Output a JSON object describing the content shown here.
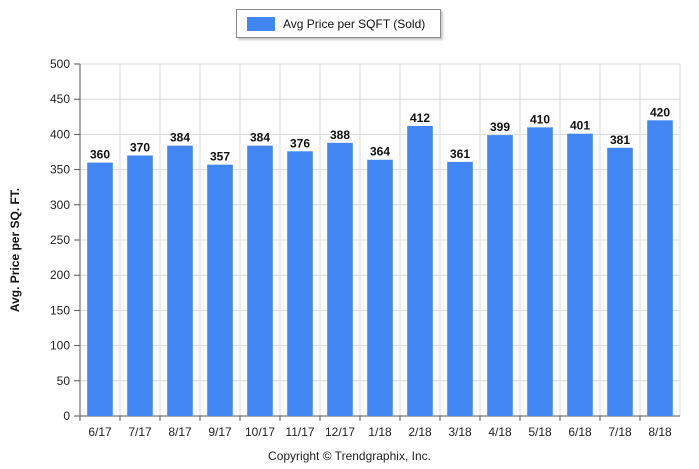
{
  "chart_data": {
    "type": "bar",
    "categories": [
      "6/17",
      "7/17",
      "8/17",
      "9/17",
      "10/17",
      "11/17",
      "12/17",
      "1/18",
      "2/18",
      "3/18",
      "4/18",
      "5/18",
      "6/18",
      "7/18",
      "8/18"
    ],
    "series": [
      {
        "name": "Avg Price per SQFT (Sold)",
        "values": [
          360,
          370,
          384,
          357,
          384,
          376,
          388,
          364,
          412,
          361,
          399,
          410,
          401,
          381,
          420
        ],
        "color": "#4286f4"
      }
    ],
    "ylabel": "Avg. Price per SQ. FT.",
    "xlabel": "",
    "ylim": [
      0,
      500
    ],
    "yticks": [
      0,
      50,
      100,
      150,
      200,
      250,
      300,
      350,
      400,
      450,
      500
    ],
    "grid": true,
    "legend_position": "top-center"
  },
  "footer": {
    "copyright": "Copyright © Trendgraphix, Inc."
  }
}
